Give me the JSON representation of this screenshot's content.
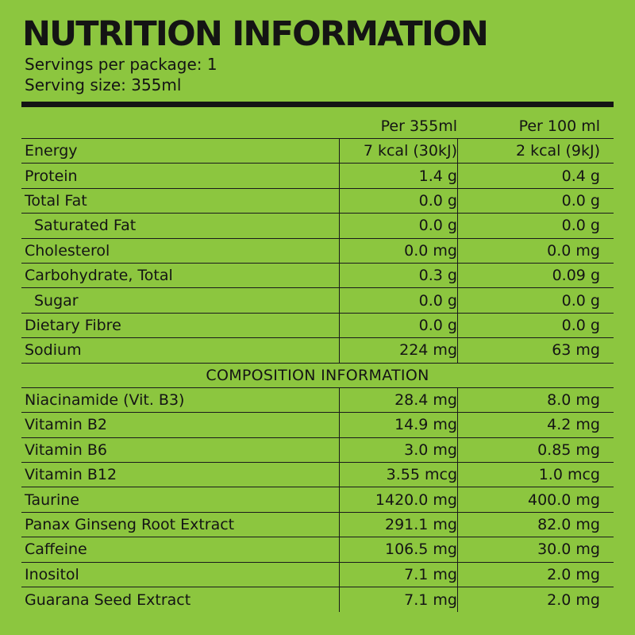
{
  "colors": {
    "background": "#8cc63f",
    "text": "#141414",
    "rule": "#1a1a1a"
  },
  "title": "NUTRITION INFORMATION",
  "servings_per_package": "Servings per package: 1",
  "serving_size": "Serving size: 355ml",
  "columns": {
    "per_serving": "Per 355ml",
    "per_100": "Per 100 ml"
  },
  "nutrition": [
    {
      "name": "Energy",
      "per_serving": "7 kcal (30kJ)",
      "per_100": "2 kcal (9kJ)"
    },
    {
      "name": "Protein",
      "per_serving": "1.4 g",
      "per_100": "0.4 g"
    },
    {
      "name": "Total Fat",
      "per_serving": "0.0 g",
      "per_100": "0.0 g"
    },
    {
      "name": "Saturated Fat",
      "per_serving": "0.0 g",
      "per_100": "0.0 g"
    },
    {
      "name": "Cholesterol",
      "per_serving": "0.0 mg",
      "per_100": "0.0 mg"
    },
    {
      "name": "Carbohydrate, Total",
      "per_serving": "0.3 g",
      "per_100": "0.09 g"
    },
    {
      "name": "Sugar",
      "per_serving": "0.0 g",
      "per_100": "0.0 g"
    },
    {
      "name": "Dietary Fibre",
      "per_serving": "0.0 g",
      "per_100": "0.0 g"
    },
    {
      "name": "Sodium",
      "per_serving": "224 mg",
      "per_100": "63 mg"
    }
  ],
  "composition_heading": "COMPOSITION INFORMATION",
  "composition": [
    {
      "name": "Niacinamide (Vit. B3)",
      "per_serving": "28.4 mg",
      "per_100": "8.0 mg"
    },
    {
      "name": "Vitamin B2",
      "per_serving": "14.9 mg",
      "per_100": "4.2 mg"
    },
    {
      "name": "Vitamin B6",
      "per_serving": "3.0 mg",
      "per_100": "0.85 mg"
    },
    {
      "name": "Vitamin B12",
      "per_serving": "3.55 mcg",
      "per_100": "1.0 mcg"
    },
    {
      "name": "Taurine",
      "per_serving": "1420.0 mg",
      "per_100": "400.0 mg"
    },
    {
      "name": "Panax Ginseng Root Extract",
      "per_serving": "291.1 mg",
      "per_100": "82.0 mg"
    },
    {
      "name": "Caffeine",
      "per_serving": "106.5 mg",
      "per_100": "30.0 mg"
    },
    {
      "name": "Inositol",
      "per_serving": "7.1 mg",
      "per_100": "2.0 mg"
    },
    {
      "name": "Guarana Seed Extract",
      "per_serving": "7.1 mg",
      "per_100": "2.0 mg"
    }
  ]
}
